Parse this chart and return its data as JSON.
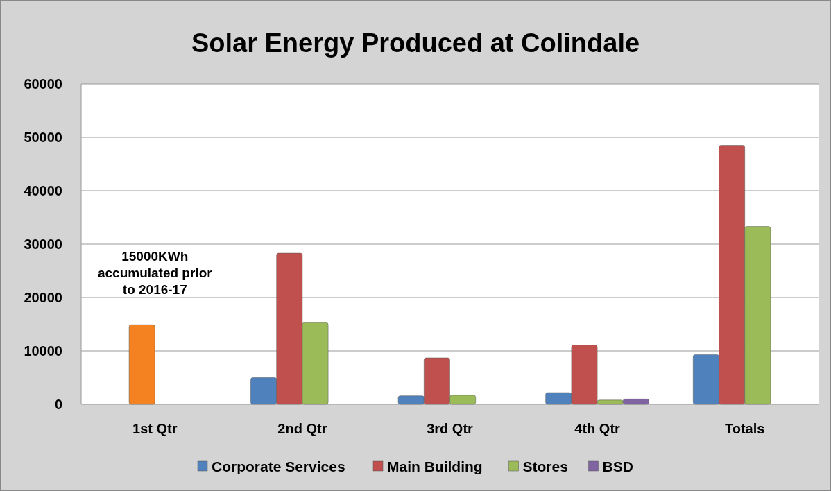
{
  "chart_data": {
    "type": "bar",
    "title": "Solar Energy Produced at Colindale",
    "categories": [
      "1st Qtr",
      "2nd Qtr",
      "3rd Qtr",
      "4th Qtr",
      "Totals"
    ],
    "series": [
      {
        "name": "Corporate Services",
        "color": "#4f81bd",
        "values": [
          null,
          5000,
          1600,
          2200,
          9300
        ]
      },
      {
        "name": "Main Building",
        "color": "#c0504d",
        "colors": [
          "#f58220",
          "#c0504d",
          "#c0504d",
          "#c0504d",
          "#c0504d"
        ],
        "values": [
          14900,
          28300,
          8700,
          11100,
          48500
        ]
      },
      {
        "name": "Stores",
        "color": "#9bbb59",
        "values": [
          null,
          15300,
          1700,
          800,
          33300
        ]
      },
      {
        "name": "BSD",
        "color": "#8064a2",
        "values": [
          null,
          null,
          null,
          1000,
          null
        ]
      }
    ],
    "annotations": [
      "15000KWh\naccumulated prior\nto 2016-17"
    ],
    "ylim": [
      0,
      60000
    ],
    "yticks": [
      0,
      10000,
      20000,
      30000,
      40000,
      50000,
      60000
    ],
    "grid": "y",
    "legend": "bottom"
  }
}
